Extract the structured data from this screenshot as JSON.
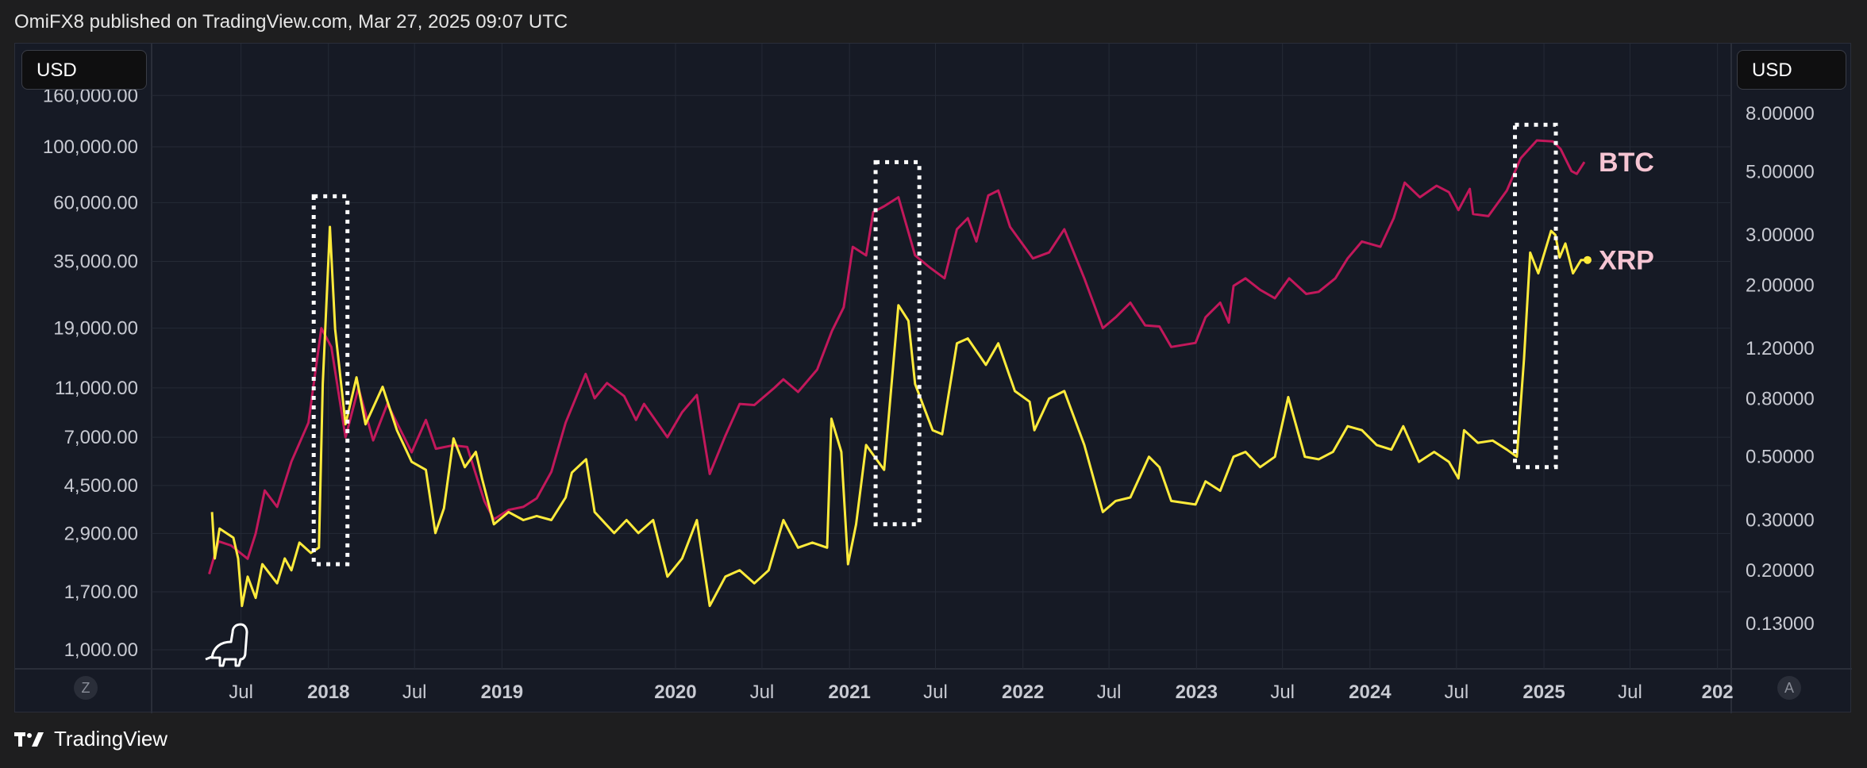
{
  "header": {
    "text": "OmiFX8 published on TradingView.com, Mar 27, 2025 09:07 UTC"
  },
  "currency": {
    "left": "USD",
    "right": "USD"
  },
  "footer": {
    "brand": "TradingView"
  },
  "buttons": {
    "left": "Z",
    "right": "A"
  },
  "colors": {
    "btc": "#c2185b",
    "xrp": "#ffeb3b",
    "background": "#161a25",
    "grid": "#252a36",
    "highlight": "#ffffff"
  },
  "icons": {
    "logo": "tradingview-logo-icon",
    "mascot": "dino-icon"
  },
  "chart_data": {
    "type": "line",
    "scale": "log",
    "grid": true,
    "x_ticks": [
      {
        "label": "Jul",
        "date": "2017-07-01",
        "bold": false
      },
      {
        "label": "2018",
        "date": "2018-01-01",
        "bold": true
      },
      {
        "label": "Jul",
        "date": "2018-07-01",
        "bold": false
      },
      {
        "label": "2019",
        "date": "2019-01-01",
        "bold": true
      },
      {
        "label": "2020",
        "date": "2020-01-01",
        "bold": true
      },
      {
        "label": "Jul",
        "date": "2020-07-01",
        "bold": false
      },
      {
        "label": "2021",
        "date": "2021-01-01",
        "bold": true
      },
      {
        "label": "Jul",
        "date": "2021-07-01",
        "bold": false
      },
      {
        "label": "2022",
        "date": "2022-01-01",
        "bold": true
      },
      {
        "label": "Jul",
        "date": "2022-07-01",
        "bold": false
      },
      {
        "label": "2023",
        "date": "2023-01-01",
        "bold": true
      },
      {
        "label": "Jul",
        "date": "2023-07-01",
        "bold": false
      },
      {
        "label": "2024",
        "date": "2024-01-01",
        "bold": true
      },
      {
        "label": "Jul",
        "date": "2024-07-01",
        "bold": false
      },
      {
        "label": "2025",
        "date": "2025-01-01",
        "bold": true
      },
      {
        "label": "Jul",
        "date": "2025-07-01",
        "bold": false
      },
      {
        "label": "202",
        "date": "2026-01-01",
        "bold": true
      }
    ],
    "left_axis": {
      "ticks": [
        "1,000.00",
        "1,700.00",
        "2,900.00",
        "4,500.00",
        "7,000.00",
        "11,000.00",
        "19,000.00",
        "35,000.00",
        "60,000.00",
        "100,000.00",
        "160,000.00"
      ],
      "values": [
        1000,
        1700,
        2900,
        4500,
        7000,
        11000,
        19000,
        35000,
        60000,
        100000,
        160000
      ]
    },
    "right_axis": {
      "ticks": [
        "0.13000",
        "0.20000",
        "0.30000",
        "0.50000",
        "0.80000",
        "1.20000",
        "2.00000",
        "3.00000",
        "5.00000",
        "8.00000"
      ],
      "values": [
        0.13,
        0.2,
        0.3,
        0.5,
        0.8,
        1.2,
        2.0,
        3.0,
        5.0,
        8.0
      ]
    },
    "series": [
      {
        "name": "BTC",
        "axis": "left",
        "color": "#c2185b",
        "points": [
          [
            "2017-04-25",
            2000
          ],
          [
            "2017-05-15",
            2700
          ],
          [
            "2017-06-10",
            2600
          ],
          [
            "2017-07-15",
            2300
          ],
          [
            "2017-08-01",
            2900
          ],
          [
            "2017-08-20",
            4300
          ],
          [
            "2017-09-15",
            3700
          ],
          [
            "2017-10-15",
            5600
          ],
          [
            "2017-11-20",
            8000
          ],
          [
            "2017-12-17",
            19000
          ],
          [
            "2018-01-07",
            16000
          ],
          [
            "2018-02-06",
            7000
          ],
          [
            "2018-03-05",
            11000
          ],
          [
            "2018-04-05",
            6800
          ],
          [
            "2018-05-05",
            9500
          ],
          [
            "2018-06-25",
            6100
          ],
          [
            "2018-07-25",
            8200
          ],
          [
            "2018-08-15",
            6300
          ],
          [
            "2018-09-20",
            6500
          ],
          [
            "2018-10-20",
            6400
          ],
          [
            "2018-11-25",
            3900
          ],
          [
            "2018-12-15",
            3300
          ],
          [
            "2019-01-15",
            3600
          ],
          [
            "2019-02-15",
            3700
          ],
          [
            "2019-03-15",
            4000
          ],
          [
            "2019-04-15",
            5100
          ],
          [
            "2019-05-15",
            8000
          ],
          [
            "2019-06-26",
            12500
          ],
          [
            "2019-07-15",
            10000
          ],
          [
            "2019-08-10",
            11500
          ],
          [
            "2019-09-15",
            10200
          ],
          [
            "2019-10-10",
            8200
          ],
          [
            "2019-10-27",
            9500
          ],
          [
            "2019-12-15",
            7000
          ],
          [
            "2020-01-15",
            8800
          ],
          [
            "2020-02-15",
            10300
          ],
          [
            "2020-03-13",
            5000
          ],
          [
            "2020-04-15",
            7100
          ],
          [
            "2020-05-15",
            9500
          ],
          [
            "2020-06-15",
            9400
          ],
          [
            "2020-07-27",
            11000
          ],
          [
            "2020-08-15",
            11900
          ],
          [
            "2020-09-15",
            10600
          ],
          [
            "2020-10-25",
            13000
          ],
          [
            "2020-11-25",
            18500
          ],
          [
            "2020-12-20",
            23000
          ],
          [
            "2021-01-08",
            40000
          ],
          [
            "2021-02-05",
            37000
          ],
          [
            "2021-02-20",
            55000
          ],
          [
            "2021-03-15",
            58000
          ],
          [
            "2021-04-14",
            63000
          ],
          [
            "2021-05-19",
            37000
          ],
          [
            "2021-06-20",
            33000
          ],
          [
            "2021-07-20",
            30000
          ],
          [
            "2021-08-15",
            47000
          ],
          [
            "2021-09-07",
            52000
          ],
          [
            "2021-09-25",
            42000
          ],
          [
            "2021-10-20",
            64000
          ],
          [
            "2021-11-10",
            67000
          ],
          [
            "2021-12-05",
            48000
          ],
          [
            "2022-01-22",
            36000
          ],
          [
            "2022-02-25",
            38000
          ],
          [
            "2022-03-29",
            47000
          ],
          [
            "2022-05-10",
            30000
          ],
          [
            "2022-06-18",
            19000
          ],
          [
            "2022-07-15",
            21000
          ],
          [
            "2022-08-15",
            24000
          ],
          [
            "2022-09-15",
            19500
          ],
          [
            "2022-10-15",
            19300
          ],
          [
            "2022-11-09",
            16000
          ],
          [
            "2022-12-30",
            16600
          ],
          [
            "2023-01-20",
            21000
          ],
          [
            "2023-02-20",
            24000
          ],
          [
            "2023-03-10",
            20000
          ],
          [
            "2023-03-20",
            28000
          ],
          [
            "2023-04-14",
            30000
          ],
          [
            "2023-05-15",
            27000
          ],
          [
            "2023-06-15",
            25000
          ],
          [
            "2023-07-15",
            30000
          ],
          [
            "2023-08-20",
            26000
          ],
          [
            "2023-09-15",
            26500
          ],
          [
            "2023-10-20",
            30000
          ],
          [
            "2023-11-15",
            36000
          ],
          [
            "2023-12-15",
            42000
          ],
          [
            "2024-01-23",
            40000
          ],
          [
            "2024-02-20",
            52000
          ],
          [
            "2024-03-14",
            72000
          ],
          [
            "2024-04-15",
            63000
          ],
          [
            "2024-05-20",
            70000
          ],
          [
            "2024-06-15",
            66000
          ],
          [
            "2024-07-05",
            56000
          ],
          [
            "2024-07-29",
            68000
          ],
          [
            "2024-08-05",
            54000
          ],
          [
            "2024-09-06",
            53000
          ],
          [
            "2024-10-15",
            67000
          ],
          [
            "2024-11-13",
            90000
          ],
          [
            "2024-12-17",
            106000
          ],
          [
            "2025-01-20",
            105000
          ],
          [
            "2025-02-05",
            98000
          ],
          [
            "2025-02-28",
            80000
          ],
          [
            "2025-03-11",
            78000
          ],
          [
            "2025-03-27",
            87000
          ]
        ]
      },
      {
        "name": "XRP",
        "axis": "right",
        "color": "#ffeb3b",
        "points": [
          [
            "2017-05-01",
            0.32
          ],
          [
            "2017-05-07",
            0.22
          ],
          [
            "2017-05-17",
            0.28
          ],
          [
            "2017-06-15",
            0.26
          ],
          [
            "2017-06-25",
            0.22
          ],
          [
            "2017-07-03",
            0.15
          ],
          [
            "2017-07-15",
            0.19
          ],
          [
            "2017-08-01",
            0.16
          ],
          [
            "2017-08-15",
            0.21
          ],
          [
            "2017-09-15",
            0.18
          ],
          [
            "2017-10-01",
            0.22
          ],
          [
            "2017-10-15",
            0.2
          ],
          [
            "2017-11-01",
            0.25
          ],
          [
            "2017-11-25",
            0.23
          ],
          [
            "2017-12-12",
            0.24
          ],
          [
            "2017-12-20",
            0.9
          ],
          [
            "2018-01-04",
            3.2
          ],
          [
            "2018-01-15",
            1.4
          ],
          [
            "2018-02-06",
            0.65
          ],
          [
            "2018-03-01",
            0.95
          ],
          [
            "2018-03-20",
            0.65
          ],
          [
            "2018-04-25",
            0.88
          ],
          [
            "2018-05-25",
            0.62
          ],
          [
            "2018-06-25",
            0.48
          ],
          [
            "2018-07-25",
            0.45
          ],
          [
            "2018-08-14",
            0.27
          ],
          [
            "2018-09-01",
            0.33
          ],
          [
            "2018-09-21",
            0.58
          ],
          [
            "2018-10-15",
            0.46
          ],
          [
            "2018-11-07",
            0.52
          ],
          [
            "2018-11-20",
            0.42
          ],
          [
            "2018-12-15",
            0.29
          ],
          [
            "2019-01-15",
            0.32
          ],
          [
            "2019-02-15",
            0.3
          ],
          [
            "2019-03-15",
            0.31
          ],
          [
            "2019-04-15",
            0.3
          ],
          [
            "2019-05-15",
            0.36
          ],
          [
            "2019-05-28",
            0.44
          ],
          [
            "2019-06-27",
            0.49
          ],
          [
            "2019-07-15",
            0.32
          ],
          [
            "2019-08-25",
            0.27
          ],
          [
            "2019-09-20",
            0.3
          ],
          [
            "2019-10-15",
            0.27
          ],
          [
            "2019-11-15",
            0.3
          ],
          [
            "2019-12-15",
            0.19
          ],
          [
            "2020-01-15",
            0.22
          ],
          [
            "2020-02-15",
            0.3
          ],
          [
            "2020-03-13",
            0.15
          ],
          [
            "2020-04-15",
            0.19
          ],
          [
            "2020-05-15",
            0.2
          ],
          [
            "2020-06-15",
            0.18
          ],
          [
            "2020-07-15",
            0.2
          ],
          [
            "2020-08-15",
            0.3
          ],
          [
            "2020-09-15",
            0.24
          ],
          [
            "2020-10-15",
            0.25
          ],
          [
            "2020-11-15",
            0.24
          ],
          [
            "2020-11-24",
            0.68
          ],
          [
            "2020-12-15",
            0.52
          ],
          [
            "2020-12-29",
            0.21
          ],
          [
            "2021-01-15",
            0.29
          ],
          [
            "2021-02-05",
            0.55
          ],
          [
            "2021-03-15",
            0.45
          ],
          [
            "2021-04-14",
            1.7
          ],
          [
            "2021-05-05",
            1.5
          ],
          [
            "2021-05-19",
            0.9
          ],
          [
            "2021-06-25",
            0.62
          ],
          [
            "2021-07-15",
            0.6
          ],
          [
            "2021-08-15",
            1.25
          ],
          [
            "2021-09-07",
            1.3
          ],
          [
            "2021-10-15",
            1.05
          ],
          [
            "2021-11-10",
            1.25
          ],
          [
            "2021-12-15",
            0.85
          ],
          [
            "2022-01-15",
            0.78
          ],
          [
            "2022-01-25",
            0.62
          ],
          [
            "2022-02-25",
            0.8
          ],
          [
            "2022-03-29",
            0.85
          ],
          [
            "2022-05-10",
            0.55
          ],
          [
            "2022-06-18",
            0.32
          ],
          [
            "2022-07-15",
            0.35
          ],
          [
            "2022-08-15",
            0.36
          ],
          [
            "2022-09-23",
            0.5
          ],
          [
            "2022-10-15",
            0.46
          ],
          [
            "2022-11-09",
            0.35
          ],
          [
            "2022-12-30",
            0.34
          ],
          [
            "2023-01-20",
            0.41
          ],
          [
            "2023-02-20",
            0.38
          ],
          [
            "2023-03-20",
            0.5
          ],
          [
            "2023-04-14",
            0.52
          ],
          [
            "2023-05-15",
            0.46
          ],
          [
            "2023-06-15",
            0.5
          ],
          [
            "2023-07-13",
            0.81
          ],
          [
            "2023-08-17",
            0.5
          ],
          [
            "2023-09-15",
            0.49
          ],
          [
            "2023-10-15",
            0.52
          ],
          [
            "2023-11-15",
            0.64
          ],
          [
            "2023-12-15",
            0.62
          ],
          [
            "2024-01-15",
            0.55
          ],
          [
            "2024-02-15",
            0.53
          ],
          [
            "2024-03-11",
            0.64
          ],
          [
            "2024-04-13",
            0.48
          ],
          [
            "2024-05-15",
            0.52
          ],
          [
            "2024-06-15",
            0.48
          ],
          [
            "2024-07-05",
            0.42
          ],
          [
            "2024-07-17",
            0.62
          ],
          [
            "2024-08-15",
            0.56
          ],
          [
            "2024-09-15",
            0.57
          ],
          [
            "2024-10-15",
            0.53
          ],
          [
            "2024-11-05",
            0.5
          ],
          [
            "2024-11-20",
            1.1
          ],
          [
            "2024-12-03",
            2.6
          ],
          [
            "2024-12-20",
            2.2
          ],
          [
            "2025-01-16",
            3.1
          ],
          [
            "2025-01-25",
            3.0
          ],
          [
            "2025-02-03",
            2.5
          ],
          [
            "2025-02-15",
            2.8
          ],
          [
            "2025-03-03",
            2.2
          ],
          [
            "2025-03-10",
            2.3
          ],
          [
            "2025-03-20",
            2.45
          ],
          [
            "2025-03-27",
            2.45
          ]
        ]
      }
    ],
    "annotations": [
      {
        "type": "dotted-rect",
        "x1": "2017-12-01",
        "x2": "2018-02-10",
        "y1": 0.21,
        "y2": 4.1,
        "axis": "right"
      },
      {
        "type": "dotted-rect",
        "x1": "2021-02-25",
        "x2": "2021-05-28",
        "y1": 0.29,
        "y2": 5.4,
        "axis": "right"
      },
      {
        "type": "dotted-rect",
        "x1": "2024-11-01",
        "x2": "2025-01-26",
        "y1": 0.46,
        "y2": 7.3,
        "axis": "right"
      }
    ]
  }
}
